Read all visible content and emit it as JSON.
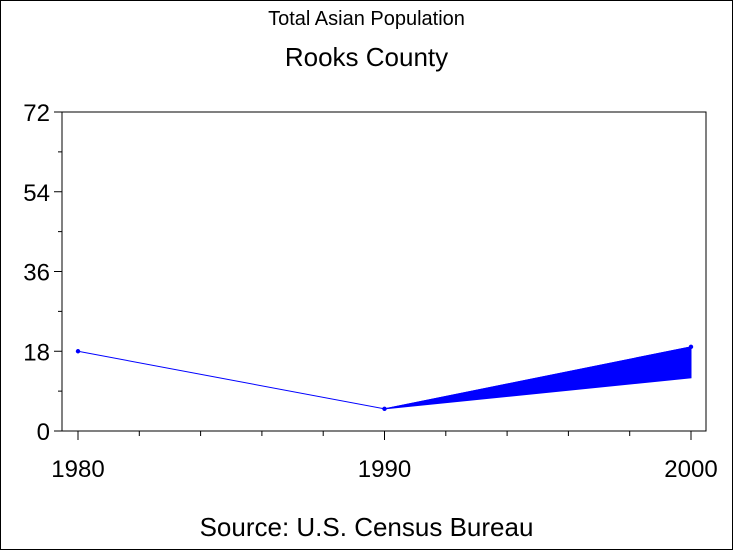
{
  "chart_data": {
    "type": "line",
    "title": "Total Asian Population",
    "subtitle": "Rooks County",
    "footnote": "Source: U.S. Census Bureau",
    "x": [
      1980,
      1990,
      2000
    ],
    "xticks": [
      "1980",
      "1990",
      "2000"
    ],
    "yticks": [
      "0",
      "18",
      "36",
      "54",
      "72"
    ],
    "xlim": [
      1980,
      2000
    ],
    "ylim": [
      0,
      72
    ],
    "grid": false,
    "legend": "none",
    "series": [
      {
        "values": [
          18,
          5,
          19
        ],
        "color": "#0000ff"
      }
    ],
    "band": {
      "x": [
        1990,
        2000
      ],
      "upper": [
        5,
        19
      ],
      "lower": [
        5,
        12
      ],
      "color": "#0000ff"
    }
  }
}
